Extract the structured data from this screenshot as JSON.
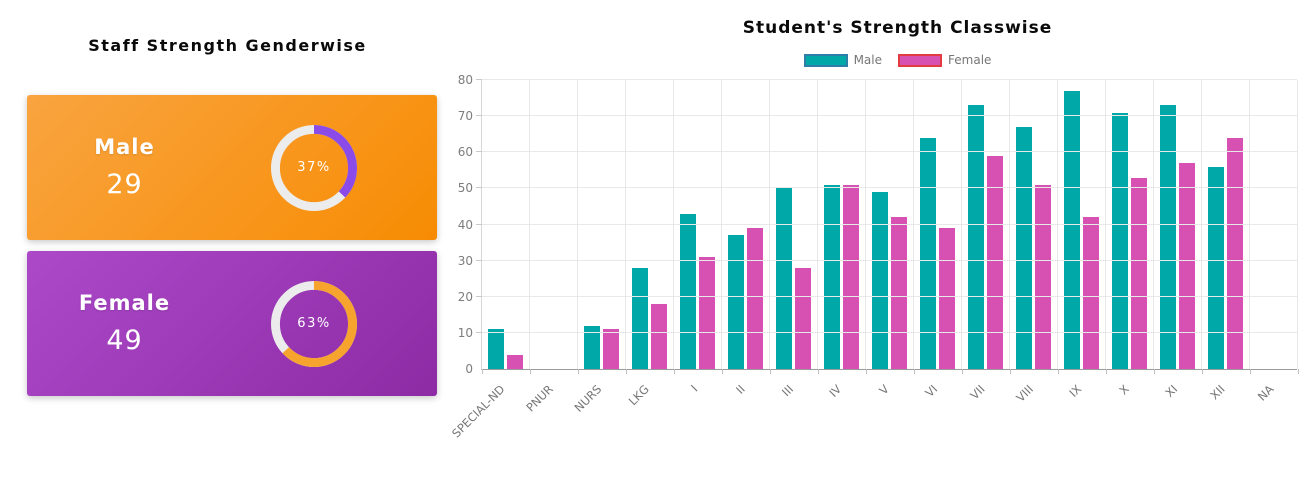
{
  "left_panel": {
    "title": "Staff Strength Genderwise"
  },
  "right_panel": {
    "title": "Student's Strength Classwise",
    "legend": [
      {
        "label": "Male"
      },
      {
        "label": "Female"
      }
    ]
  },
  "colors": {
    "male_bar": "#00A8A8",
    "male_bar_border": "#2E7FA8",
    "female_bar": "#D651B2",
    "female_bar_border": "#E23B42",
    "male_card_from": "#F9A440",
    "male_card_to": "#F78C03",
    "female_card_from": "#AB49C9",
    "female_card_to": "#8D2BA5",
    "male_arc": "#8B4BE8",
    "female_arc": "#F6A42D",
    "ring_base": "#ECECEC"
  },
  "chart_data": [
    {
      "type": "pie",
      "title": "Staff Strength Genderwise",
      "labels": [
        "Male",
        "Female"
      ],
      "values": [
        29,
        49
      ],
      "percents": [
        37,
        63
      ],
      "percent_labels": [
        "37%",
        "63%"
      ]
    },
    {
      "type": "bar",
      "title": "Student's Strength Classwise",
      "categories": [
        "SPECIAL-ND",
        "PNUR",
        "NURS",
        "LKG",
        "I",
        "II",
        "III",
        "IV",
        "V",
        "VI",
        "VII",
        "VIII",
        "IX",
        "X",
        "XI",
        "XII",
        "NA"
      ],
      "series": [
        {
          "name": "Male",
          "values": [
            11,
            0,
            12,
            28,
            43,
            37,
            50,
            51,
            49,
            64,
            73,
            67,
            77,
            71,
            73,
            56,
            0
          ]
        },
        {
          "name": "Female",
          "values": [
            4,
            0,
            11,
            18,
            31,
            39,
            28,
            51,
            42,
            39,
            59,
            51,
            42,
            53,
            57,
            64,
            0
          ]
        }
      ],
      "xlabel": "",
      "ylabel": "",
      "ylim": [
        0,
        80
      ],
      "ytick": 10,
      "grid": true,
      "legend_position": "top"
    }
  ]
}
